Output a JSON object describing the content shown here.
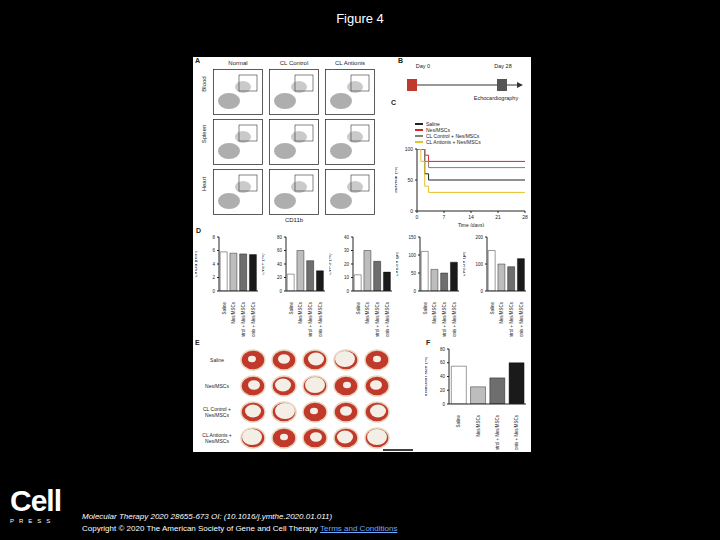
{
  "slide": {
    "title": "Figure 4",
    "logo": "Cell",
    "logo_subtext": "PRESS",
    "citation": "Molecular Therapy 2020 28655-673 OI: (10.1016/j.ymthe.2020.01.011)",
    "copyright": "Copyright © 2020 The American Society of Gene and Cell Therapy",
    "link": "Terms and Conditions"
  },
  "panel_A": {
    "label": "A",
    "columns": [
      "Normal",
      "CL Control",
      "CL Antionis"
    ],
    "rows": [
      "Blood",
      "Spleen",
      "Heart"
    ],
    "x_label": "CD11b"
  },
  "panel_B": {
    "label": "B",
    "events": [
      "Day 0",
      "Day 28"
    ],
    "caption": "Echocardiography"
  },
  "panel_E": {
    "label": "E",
    "groups": [
      "Saline",
      "Nes/MSCs",
      "CL Control + Nes/MSCs",
      "CL Antionis + Nes/MSCs"
    ]
  },
  "chart_data": [
    {
      "panel": "C",
      "type": "line",
      "line_style": "step",
      "x_label": "Time (days)",
      "y_label": "Survival (%)",
      "x": [
        0,
        1,
        2,
        3,
        7,
        14,
        21,
        28
      ],
      "xlim": [
        0,
        28
      ],
      "xticks": [
        0,
        7,
        14,
        21,
        28
      ],
      "ylim": [
        0,
        100
      ],
      "yticks": [
        0,
        50,
        100
      ],
      "legend": "top",
      "series": [
        {
          "name": "Saline",
          "color": "#222222",
          "values": [
            100,
            100,
            60,
            50,
            50,
            50,
            50,
            50
          ]
        },
        {
          "name": "Nes/MSCs",
          "color": "#d62728",
          "values": [
            100,
            100,
            90,
            80,
            80,
            80,
            80,
            80
          ]
        },
        {
          "name": "CL Control + Nes/MSCs",
          "color": "#7f7f7f",
          "values": [
            100,
            100,
            80,
            70,
            70,
            70,
            70,
            70
          ]
        },
        {
          "name": "CL Antionis + Nes/MSCs",
          "color": "#e6c229",
          "values": [
            100,
            80,
            40,
            30,
            30,
            30,
            30,
            30
          ]
        }
      ]
    },
    {
      "panel": "D",
      "type": "bar",
      "y_label": "LVIDd (mm)",
      "categories": [
        "Saline",
        "Nes/MSCs",
        "CL Control + Nes/MSCs",
        "CL Antionis + Nes/MSCs"
      ],
      "values": [
        5.8,
        5.6,
        5.5,
        5.4
      ],
      "colors": [
        "#ffffff",
        "#bdbdbd",
        "#6e6e6e",
        "#1a1a1a"
      ],
      "ylim": [
        0,
        8
      ],
      "yticks": [
        0,
        2,
        4,
        6,
        8
      ]
    },
    {
      "type": "bar",
      "y_label": "LVEF (%)",
      "categories": [
        "Saline",
        "Nes/MSCs",
        "CL Control + Nes/MSCs",
        "CL Antionis + Nes/MSCs"
      ],
      "values": [
        25,
        60,
        45,
        30
      ],
      "colors": [
        "#ffffff",
        "#bdbdbd",
        "#6e6e6e",
        "#1a1a1a"
      ],
      "ylim": [
        0,
        80
      ],
      "yticks": [
        0,
        20,
        40,
        60,
        80
      ]
    },
    {
      "type": "bar",
      "y_label": "LVFS (%)",
      "categories": [
        "Saline",
        "Nes/MSCs",
        "CL Control + Nes/MSCs",
        "CL Antionis + Nes/MSCs"
      ],
      "values": [
        12,
        30,
        22,
        14
      ],
      "colors": [
        "#ffffff",
        "#bdbdbd",
        "#6e6e6e",
        "#1a1a1a"
      ],
      "ylim": [
        0,
        40
      ],
      "yticks": [
        0,
        10,
        20,
        30,
        40
      ]
    },
    {
      "type": "bar",
      "y_label": "LVESV (μl)",
      "categories": [
        "Saline",
        "Nes/MSCs",
        "CL Control + Nes/MSCs",
        "CL Antionis + Nes/MSCs"
      ],
      "values": [
        110,
        60,
        50,
        80
      ],
      "colors": [
        "#ffffff",
        "#bdbdbd",
        "#6e6e6e",
        "#1a1a1a"
      ],
      "ylim": [
        0,
        150
      ],
      "yticks": [
        0,
        50,
        100,
        150
      ]
    },
    {
      "type": "bar",
      "y_label": "LVEDV (μl)",
      "categories": [
        "Saline",
        "Nes/MSCs",
        "CL Control + Nes/MSCs",
        "CL Antionis + Nes/MSCs"
      ],
      "values": [
        150,
        100,
        90,
        120
      ],
      "colors": [
        "#ffffff",
        "#bdbdbd",
        "#6e6e6e",
        "#1a1a1a"
      ],
      "ylim": [
        0,
        200
      ],
      "yticks": [
        0,
        100,
        200
      ]
    },
    {
      "panel": "F",
      "type": "bar",
      "y_label": "Infarction size (%)",
      "categories": [
        "Saline",
        "Nes/MSCs",
        "CL Control + Nes/MSCs",
        "CL Antionis + Nes/MSCs"
      ],
      "values": [
        55,
        25,
        38,
        60
      ],
      "colors": [
        "#ffffff",
        "#bdbdbd",
        "#6e6e6e",
        "#1a1a1a"
      ],
      "ylim": [
        0,
        80
      ],
      "yticks": [
        0,
        20,
        40,
        60,
        80
      ]
    }
  ]
}
